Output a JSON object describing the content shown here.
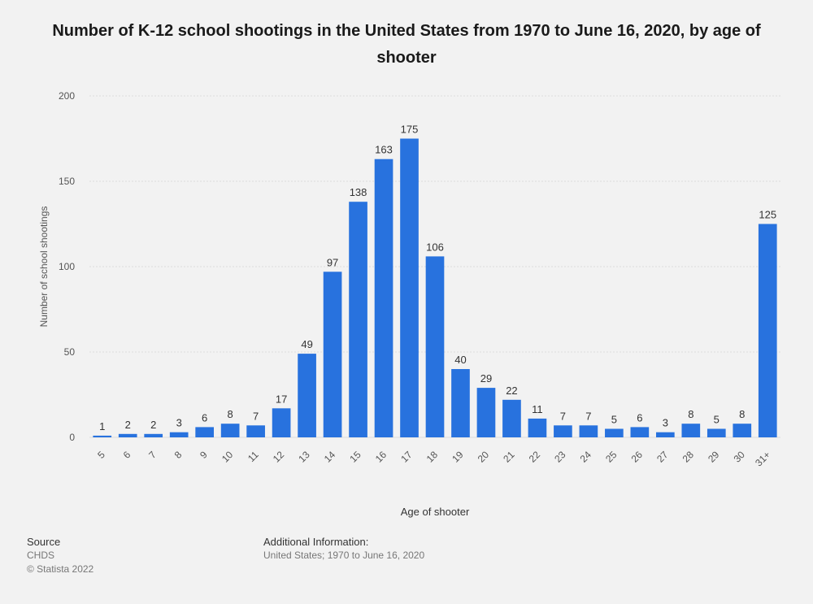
{
  "title": "Number of K-12 school shootings in the United States from 1970 to June 16, 2020, by age of shooter",
  "footer": {
    "source_heading": "Source",
    "source_name": "CHDS",
    "copyright": "© Statista 2022",
    "info_heading": "Additional Information:",
    "info_text": "United States; 1970 to June 16, 2020"
  },
  "colors": {
    "bar": "#2872de",
    "grid": "#dcdcdc",
    "label": "#333333",
    "axis_text": "#555555"
  },
  "chart_data": {
    "type": "bar",
    "title": "Number of K-12 school shootings in the United States from 1970 to June 16, 2020, by age of shooter",
    "xlabel": "Age of shooter",
    "ylabel": "Number of school shootings",
    "ylim": [
      0,
      200
    ],
    "yticks": [
      0,
      50,
      100,
      150,
      200
    ],
    "grid": true,
    "categories": [
      "5",
      "6",
      "7",
      "8",
      "9",
      "10",
      "11",
      "12",
      "13",
      "14",
      "15",
      "16",
      "17",
      "18",
      "19",
      "20",
      "21",
      "22",
      "23",
      "24",
      "25",
      "26",
      "27",
      "28",
      "29",
      "30",
      "31+"
    ],
    "values": [
      1,
      2,
      2,
      3,
      6,
      8,
      7,
      17,
      49,
      97,
      138,
      163,
      175,
      106,
      40,
      29,
      22,
      11,
      7,
      7,
      5,
      6,
      3,
      8,
      5,
      8,
      125
    ]
  }
}
